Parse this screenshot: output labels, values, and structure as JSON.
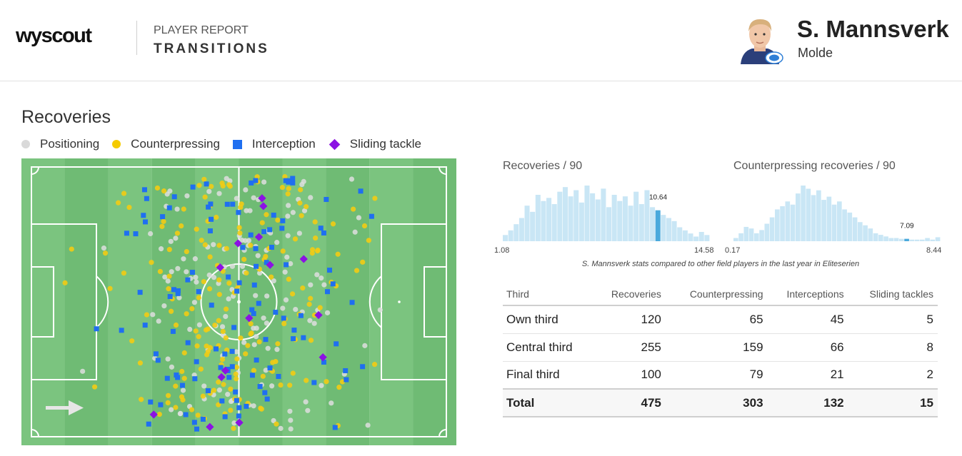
{
  "header": {
    "logo": "wyscout",
    "report_label": "PLAYER REPORT",
    "report_title": "TRANSITIONS",
    "player_name": "S. Mannsverk",
    "team": "Molde"
  },
  "section": {
    "title": "Recoveries",
    "legend": [
      {
        "label": "Positioning",
        "color": "#d9d9d9",
        "shape": "circle"
      },
      {
        "label": "Counterpressing",
        "color": "#f5cb00",
        "shape": "circle"
      },
      {
        "label": "Interception",
        "color": "#1f6ff0",
        "shape": "square"
      },
      {
        "label": "Sliding tackle",
        "color": "#8b12e3",
        "shape": "diamond"
      }
    ]
  },
  "colors": {
    "pitch_light": "#7bc47f",
    "pitch_dark": "#6fbb74",
    "bars": "#c9e6f5",
    "bar_highlight": "#4aa9dc"
  },
  "histograms": {
    "recoveries": {
      "title": "Recoveries / 90",
      "min_label": "1.08",
      "max_label": "14.58",
      "value": "10.64"
    },
    "counterpressing": {
      "title": "Counterpressing recoveries / 90",
      "min_label": "0.17",
      "max_label": "8.44",
      "value": "7.09"
    },
    "caption": "S. Mannsverk stats compared to other field players in the last year in Eliteserien"
  },
  "table": {
    "headers": [
      "Third",
      "Recoveries",
      "Counterpressing",
      "Interceptions",
      "Sliding tackles"
    ],
    "rows": [
      [
        "Own third",
        "120",
        "65",
        "45",
        "5"
      ],
      [
        "Central third",
        "255",
        "159",
        "66",
        "8"
      ],
      [
        "Final third",
        "100",
        "79",
        "21",
        "2"
      ]
    ],
    "total": [
      "Total",
      "475",
      "303",
      "132",
      "15"
    ]
  }
}
